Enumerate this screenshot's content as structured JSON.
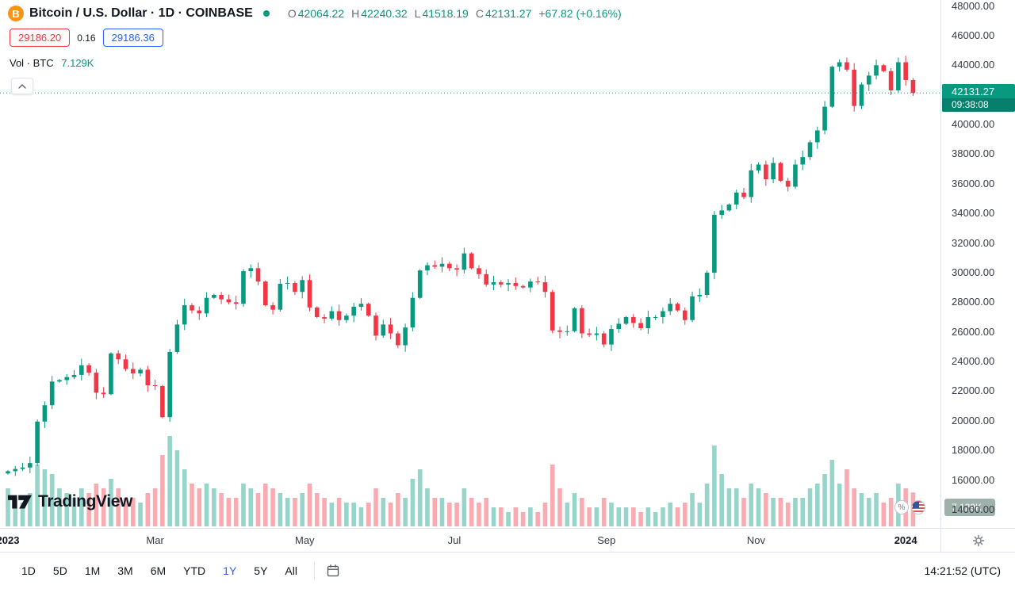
{
  "header": {
    "symbol_title": "Bitcoin / U.S. Dollar · 1D · COINBASE",
    "ohlc": {
      "o_label": "O",
      "o": "42064.22",
      "h_label": "H",
      "h": "42240.32",
      "l_label": "L",
      "l": "41518.19",
      "c_label": "C",
      "c": "42131.27",
      "change": "+67.82 (+0.16%)"
    },
    "bid": "29186.20",
    "spread": "0.16",
    "ask": "29186.36",
    "vol_label": "Vol · BTC",
    "vol_value": "7.129K"
  },
  "price_scale": {
    "labels": [
      "48000.00",
      "46000.00",
      "44000.00",
      "42000.00",
      "40000.00",
      "38000.00",
      "36000.00",
      "34000.00",
      "32000.00",
      "30000.00",
      "28000.00",
      "26000.00",
      "24000.00",
      "22000.00",
      "20000.00",
      "18000.00",
      "16000.00",
      "14000.00"
    ],
    "last_price": "42131.27",
    "countdown": "09:38:08",
    "volume_badge": "7.129K"
  },
  "time_scale": {
    "clock": "14:21:52 (UTC)"
  },
  "toolbar": {
    "ranges": [
      "1D",
      "5D",
      "1M",
      "3M",
      "6M",
      "YTD",
      "1Y",
      "5Y",
      "All"
    ],
    "active_range": "1Y"
  },
  "logo": {
    "text": "TradingView"
  },
  "icons": {
    "bitcoin_glyph": "B",
    "percent_glyph": "%"
  },
  "colors": {
    "up": "#089981",
    "down": "#f23645",
    "accent_blue": "#2962ff",
    "bid_red": "#f23645",
    "volume_badge_bg": "#9eb1ab"
  },
  "chart_data": {
    "type": "candlestick",
    "pair": "BTC/USD",
    "exchange": "COINBASE",
    "interval": "1D",
    "ylim": [
      14000,
      48000
    ],
    "last_close": 42131.27,
    "x_labels": [
      {
        "text": "2023",
        "day": 0
      },
      {
        "text": "Mar",
        "day": 60
      },
      {
        "text": "May",
        "day": 121
      },
      {
        "text": "Jul",
        "day": 182
      },
      {
        "text": "Sep",
        "day": 244
      },
      {
        "text": "Nov",
        "day": 305
      },
      {
        "text": "2024",
        "day": 366
      }
    ],
    "closes": [
      16600,
      16750,
      16850,
      17150,
      19950,
      21050,
      22650,
      22750,
      22950,
      23100,
      23750,
      23250,
      21900,
      21800,
      24550,
      24150,
      23500,
      23200,
      23450,
      22400,
      22350,
      20250,
      24650,
      26500,
      27800,
      27450,
      27250,
      28300,
      28500,
      28200,
      28000,
      27900,
      30100,
      30300,
      29400,
      27800,
      27500,
      29250,
      29300,
      28700,
      29500,
      27650,
      27000,
      26900,
      27400,
      26800,
      27100,
      27700,
      27900,
      27100,
      25750,
      26500,
      25900,
      25100,
      26300,
      28300,
      30150,
      30500,
      30400,
      30600,
      30300,
      30200,
      31300,
      30300,
      29900,
      29200,
      29350,
      29200,
      29300,
      29100,
      29000,
      29400,
      29350,
      28700,
      26100,
      26000,
      26050,
      27600,
      25900,
      25800,
      25900,
      25150,
      26200,
      26550,
      27000,
      26600,
      26250,
      27000,
      27000,
      27400,
      27900,
      27450,
      26800,
      28400,
      28500,
      30000,
      33900,
      34200,
      34600,
      35400,
      35100,
      36900,
      37300,
      36300,
      37400,
      36200,
      35800,
      37300,
      37800,
      38800,
      39600,
      41200,
      43900,
      44200,
      43700,
      41250,
      42700,
      43300,
      44000,
      43600,
      42300,
      44200,
      43000,
      42131.27
    ],
    "volumes_k": [
      8,
      6,
      5,
      7,
      13,
      12,
      11,
      8,
      7,
      6,
      8,
      7,
      9,
      8,
      10,
      8,
      6,
      6,
      5,
      7,
      8,
      15,
      19,
      16,
      12,
      9,
      8,
      9,
      8,
      7,
      6,
      6,
      9,
      8,
      7,
      9,
      8,
      7,
      6,
      6,
      7,
      9,
      7,
      6,
      5,
      6,
      5,
      5,
      4,
      5,
      8,
      6,
      5,
      7,
      6,
      10,
      12,
      8,
      6,
      6,
      5,
      5,
      8,
      6,
      5,
      6,
      4,
      4,
      3,
      4,
      3,
      4,
      3,
      5,
      13,
      8,
      5,
      7,
      6,
      4,
      4,
      6,
      5,
      4,
      4,
      4,
      3,
      4,
      3,
      4,
      5,
      4,
      5,
      7,
      5,
      9,
      17,
      11,
      8,
      8,
      6,
      9,
      8,
      7,
      6,
      6,
      5,
      6,
      6,
      8,
      9,
      11,
      14,
      9,
      12,
      8,
      7,
      6,
      7,
      5,
      6,
      9,
      8,
      7.129
    ]
  }
}
